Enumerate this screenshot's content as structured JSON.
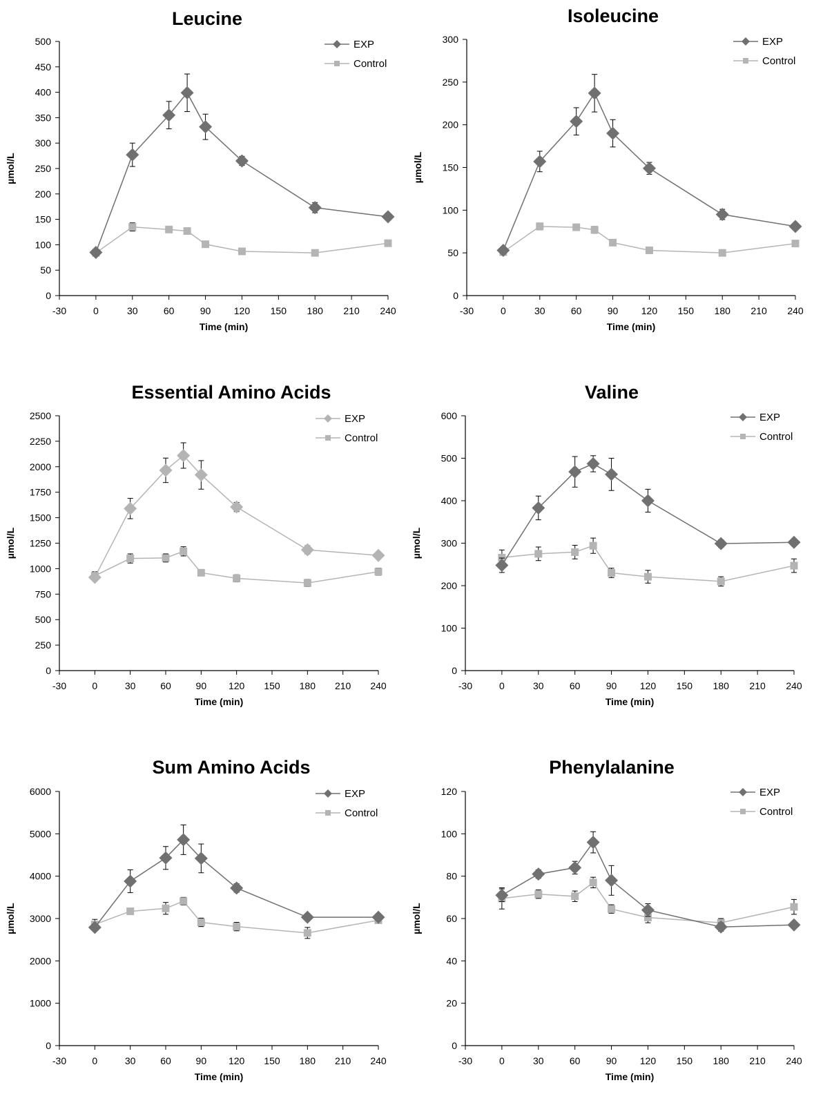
{
  "colors": {
    "exp_dark": "#707070",
    "exp_light": "#b4b4b4",
    "control": "#b4b4b4",
    "axis": "#000000",
    "errorbar": "#000000"
  },
  "chart_data": [
    {
      "type": "line",
      "title": "Leucine",
      "xlabel": "Time (min)",
      "ylabel": "µmol/L",
      "xlim": [
        -30,
        240
      ],
      "xticks": [
        -30,
        0,
        30,
        60,
        90,
        120,
        150,
        180,
        210,
        240
      ],
      "ylim": [
        0,
        500
      ],
      "yticks": [
        0,
        50,
        100,
        150,
        200,
        250,
        300,
        350,
        400,
        450,
        500
      ],
      "legend": "top-right",
      "exp_color": "#707070",
      "x": [
        0,
        30,
        60,
        75,
        90,
        120,
        180,
        240
      ],
      "series": [
        {
          "name": "EXP",
          "marker": "diamond",
          "values": [
            85,
            277,
            355,
            399,
            332,
            265,
            173,
            155
          ],
          "errors": [
            0,
            23,
            27,
            37,
            25,
            9,
            10,
            4
          ]
        },
        {
          "name": "Control",
          "marker": "square",
          "values": [
            84,
            135,
            130,
            127,
            101,
            87,
            84,
            103
          ],
          "errors": [
            0,
            8,
            4,
            6,
            5,
            4,
            3,
            4
          ]
        }
      ]
    },
    {
      "type": "line",
      "title": "Isoleucine",
      "xlabel": "Time (min)",
      "ylabel": "µmol/L",
      "xlim": [
        -30,
        240
      ],
      "xticks": [
        -30,
        0,
        30,
        60,
        90,
        120,
        150,
        180,
        210,
        240
      ],
      "ylim": [
        0,
        300
      ],
      "yticks": [
        0,
        50,
        100,
        150,
        200,
        250,
        300
      ],
      "legend": "top-right",
      "exp_color": "#707070",
      "x": [
        0,
        30,
        60,
        75,
        90,
        120,
        180,
        240
      ],
      "series": [
        {
          "name": "EXP",
          "marker": "diamond",
          "values": [
            53,
            157,
            204,
            237,
            190,
            149,
            95,
            81
          ],
          "errors": [
            0,
            12,
            16,
            22,
            16,
            7,
            6,
            3
          ]
        },
        {
          "name": "Control",
          "marker": "square",
          "values": [
            51,
            81,
            80,
            77,
            62,
            53,
            50,
            61
          ],
          "errors": [
            0,
            4,
            2,
            4,
            3,
            3,
            2,
            3
          ]
        }
      ]
    },
    {
      "type": "line",
      "title": "Essential Amino Acids",
      "xlabel": "Time (min)",
      "ylabel": "µmol/L",
      "xlim": [
        -30,
        240
      ],
      "xticks": [
        -30,
        0,
        30,
        60,
        90,
        120,
        150,
        180,
        210,
        240
      ],
      "ylim": [
        0,
        2500
      ],
      "yticks": [
        0,
        250,
        500,
        750,
        1000,
        1250,
        1500,
        1750,
        2000,
        2250,
        2500
      ],
      "legend": "top-right",
      "exp_color": "#b4b4b4",
      "x": [
        0,
        30,
        60,
        75,
        90,
        120,
        180,
        240
      ],
      "series": [
        {
          "name": "EXP",
          "marker": "diamond",
          "values": [
            915,
            1590,
            1965,
            2110,
            1920,
            1605,
            1185,
            1130
          ],
          "errors": [
            0,
            100,
            120,
            125,
            140,
            45,
            40,
            20
          ]
        },
        {
          "name": "Control",
          "marker": "square",
          "values": [
            930,
            1100,
            1105,
            1170,
            960,
            905,
            860,
            970
          ],
          "errors": [
            40,
            45,
            40,
            45,
            30,
            35,
            35,
            35
          ]
        }
      ]
    },
    {
      "type": "line",
      "title": "Valine",
      "xlabel": "Time (min)",
      "ylabel": "µmol/L",
      "xlim": [
        -30,
        240
      ],
      "xticks": [
        -30,
        0,
        30,
        60,
        90,
        120,
        150,
        180,
        210,
        240
      ],
      "ylim": [
        0,
        600
      ],
      "yticks": [
        0,
        100,
        200,
        300,
        400,
        500,
        600
      ],
      "legend": "top-right",
      "exp_color": "#707070",
      "x": [
        0,
        30,
        60,
        75,
        90,
        120,
        180,
        240
      ],
      "series": [
        {
          "name": "EXP",
          "marker": "diamond",
          "values": [
            248,
            383,
            468,
            487,
            462,
            400,
            299,
            302
          ],
          "errors": [
            17,
            28,
            36,
            19,
            38,
            27,
            9,
            6
          ]
        },
        {
          "name": "Control",
          "marker": "square",
          "values": [
            266,
            275,
            279,
            294,
            230,
            221,
            210,
            247
          ],
          "errors": [
            18,
            16,
            16,
            18,
            11,
            15,
            11,
            16
          ]
        }
      ]
    },
    {
      "type": "line",
      "title": "Sum Amino Acids",
      "xlabel": "Time (min)",
      "ylabel": "µmol/L",
      "xlim": [
        -30,
        240
      ],
      "xticks": [
        -30,
        0,
        30,
        60,
        90,
        120,
        150,
        180,
        210,
        240
      ],
      "ylim": [
        0,
        6000
      ],
      "yticks": [
        0,
        1000,
        2000,
        3000,
        4000,
        5000,
        6000
      ],
      "legend": "top-right",
      "exp_color": "#707070",
      "x": [
        0,
        30,
        60,
        75,
        90,
        120,
        180,
        240
      ],
      "series": [
        {
          "name": "EXP",
          "marker": "diamond",
          "values": [
            2790,
            3880,
            4430,
            4860,
            4420,
            3720,
            3030,
            3030
          ],
          "errors": [
            0,
            270,
            270,
            350,
            340,
            100,
            60,
            30
          ]
        },
        {
          "name": "Control",
          "marker": "square",
          "values": [
            2860,
            3170,
            3240,
            3410,
            2910,
            2810,
            2660,
            2960
          ],
          "errors": [
            120,
            0,
            140,
            90,
            100,
            100,
            130,
            50
          ]
        }
      ]
    },
    {
      "type": "line",
      "title": "Phenylalanine",
      "xlabel": "Time (min)",
      "ylabel": "µmol/L",
      "xlim": [
        -30,
        240
      ],
      "xticks": [
        -30,
        0,
        30,
        60,
        90,
        120,
        150,
        180,
        210,
        240
      ],
      "ylim": [
        0,
        120
      ],
      "yticks": [
        0,
        20,
        40,
        60,
        80,
        100,
        120
      ],
      "legend": "top-right",
      "exp_color": "#707070",
      "x": [
        0,
        30,
        60,
        75,
        90,
        120,
        180,
        240
      ],
      "series": [
        {
          "name": "EXP",
          "marker": "diamond",
          "values": [
            71,
            81,
            84,
            96,
            78,
            64,
            56,
            57
          ],
          "errors": [
            3,
            2,
            3,
            5,
            7,
            3,
            2,
            1
          ]
        },
        {
          "name": "Control",
          "marker": "square",
          "values": [
            69.5,
            71.5,
            70.5,
            77,
            64.5,
            60.5,
            58,
            65.5
          ],
          "errors": [
            5,
            2,
            2.5,
            2.5,
            2,
            2.5,
            2,
            3.5
          ]
        }
      ]
    }
  ]
}
